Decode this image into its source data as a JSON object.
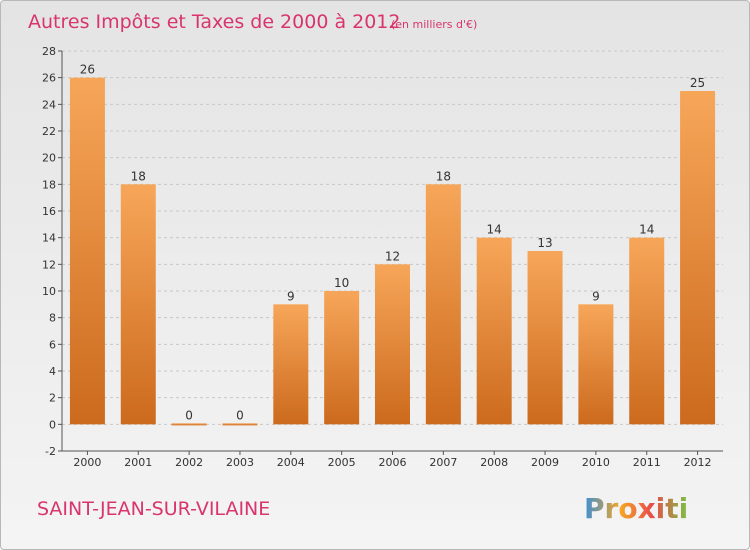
{
  "header": {
    "title": "Autres Impôts et Taxes de 2000 à 2012",
    "unit": "(en milliers d'€)"
  },
  "footer": {
    "commune": "SAINT-JEAN-SUR-VILAINE",
    "logo_text": "Proxiti"
  },
  "colors": {
    "bar_light": "#f7a659",
    "bar_dark": "#cc6a1d",
    "title": "#d9346e",
    "axis": "#555555",
    "grid": "#c8c8c8"
  },
  "chart_data": {
    "type": "bar",
    "title": "Autres Impôts et Taxes de 2000 à 2012",
    "xlabel": "",
    "ylabel": "",
    "categories": [
      "2000",
      "2001",
      "2002",
      "2003",
      "2004",
      "2005",
      "2006",
      "2007",
      "2008",
      "2009",
      "2010",
      "2011",
      "2012"
    ],
    "values": [
      26,
      18,
      0,
      0,
      9,
      10,
      12,
      18,
      14,
      13,
      9,
      14,
      25
    ],
    "value_labels": [
      "26",
      "18",
      "0",
      "0",
      "9",
      "10",
      "12",
      "18",
      "14",
      "13",
      "9",
      "14",
      "25"
    ],
    "ylim": [
      -2,
      28
    ],
    "yticks": [
      -2,
      0,
      2,
      4,
      6,
      8,
      10,
      12,
      14,
      16,
      18,
      20,
      22,
      24,
      26,
      28
    ],
    "ytick_labels": [
      "-2",
      "0",
      "2",
      "4",
      "6",
      "8",
      "10",
      "12",
      "14",
      "16",
      "18",
      "20",
      "22",
      "24",
      "26",
      "28"
    ],
    "grid": "horizontal dashed",
    "legend": "none"
  }
}
